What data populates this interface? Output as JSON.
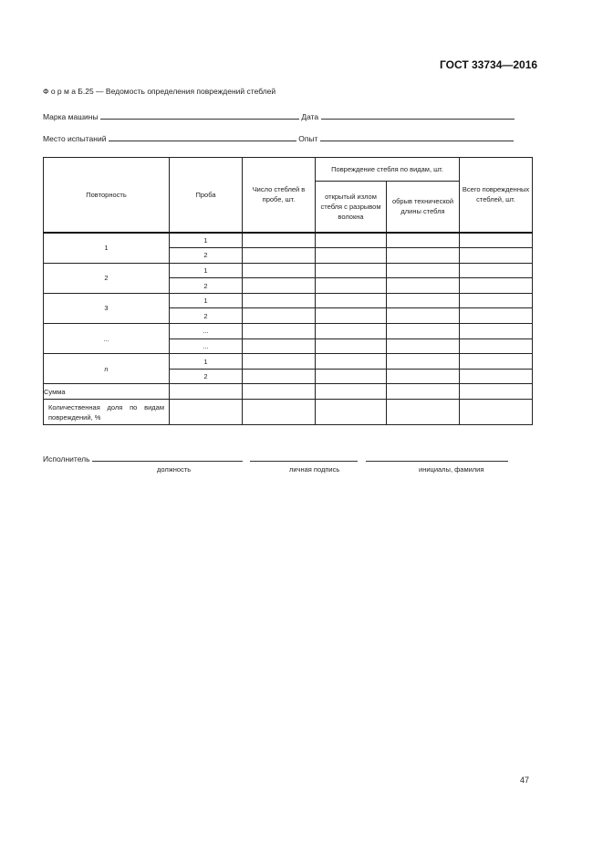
{
  "header": {
    "doc_id": "ГОСТ 33734—2016"
  },
  "form": {
    "title": "Ф о р м а  Б.25 — Ведомость определения повреждений стеблей",
    "machine_label": "Марка машины",
    "date_label": "Дата",
    "place_label": "Место испытаний",
    "experiment_label": "Опыт"
  },
  "table": {
    "headers": {
      "repeat": "Повторность",
      "sample": "Проба",
      "count": "Число стеблей в пробе, шт.",
      "damage_group": "Повреждение стебля по видам, шт.",
      "damage_open": "открытый излом стебля с разрывом волокна",
      "damage_break": "обрыв технической длины стебля",
      "total": "Всего поврежденных стеблей, шт."
    },
    "groups": [
      {
        "repeat": "1",
        "samples": [
          "1",
          "2"
        ]
      },
      {
        "repeat": "2",
        "samples": [
          "1",
          "2"
        ]
      },
      {
        "repeat": "3",
        "samples": [
          "1",
          "2"
        ]
      },
      {
        "repeat": "...",
        "samples": [
          "...",
          "..."
        ]
      },
      {
        "repeat": "n",
        "samples": [
          "1",
          "2"
        ]
      }
    ],
    "sum_label": "Сумма",
    "share_label": "Количественная доля по видам повреждений, %"
  },
  "signature": {
    "performer_label": "Исполнитель",
    "position_caption": "должность",
    "signature_caption": "личная подпись",
    "name_caption": "инициалы, фамилия"
  },
  "footer": {
    "page_number": "47"
  }
}
